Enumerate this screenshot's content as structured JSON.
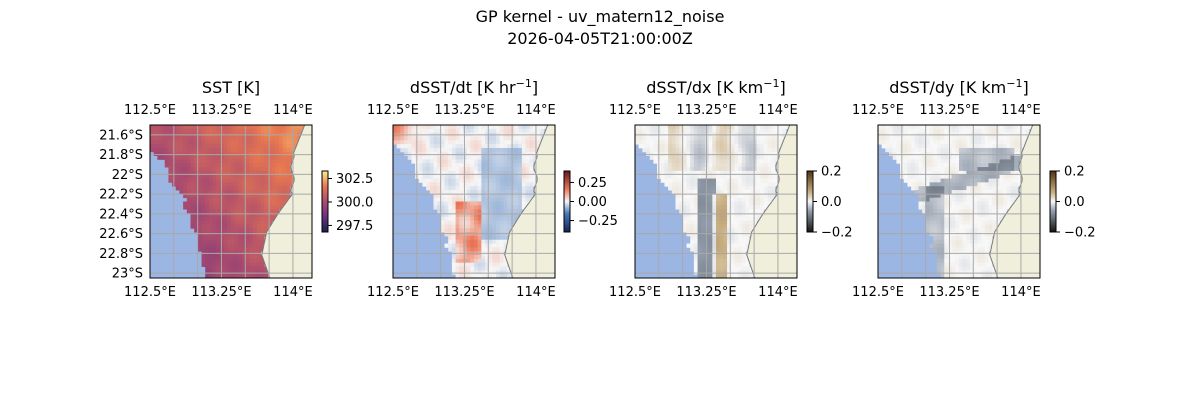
{
  "figure": {
    "title_line1": "GP kernel - uv_matern12_noise",
    "title_line2": "2026-04-05T21:00:00Z"
  },
  "chart_data": [
    {
      "type": "heatmap",
      "title_text": "SST [K]",
      "title_super": "",
      "title_suffix": "",
      "field": "sst",
      "colormap": "plasma-like (purple to orange)",
      "x_ticks": [
        "112.5°E",
        "113.25°E",
        "114°E"
      ],
      "y_ticks": [
        "21.6°S",
        "21.8°S",
        "22°S",
        "22.2°S",
        "22.4°S",
        "22.6°S",
        "22.8°S",
        "23°S"
      ],
      "xlim": [
        112.5,
        114.2
      ],
      "ylim": [
        -23.05,
        -21.5
      ],
      "land_color": "#efefdb",
      "nodata_color": "#9cb6e3",
      "colorbar": {
        "ticks": [
          "302.5",
          "300.0",
          "297.5"
        ],
        "min": 296.8,
        "max": 303.3
      }
    },
    {
      "type": "heatmap",
      "title_text": "dSST/dt [K hr",
      "title_super": "−1",
      "title_suffix": "]",
      "field": "dsdt",
      "colormap": "diverging blue-white-red",
      "x_ticks": [
        "112.5°E",
        "113.25°E",
        "114°E"
      ],
      "xlim": [
        112.5,
        114.2
      ],
      "ylim": [
        -23.05,
        -21.5
      ],
      "land_color": "#efefdb",
      "nodata_color": "#9cb6e3",
      "colorbar": {
        "ticks": [
          "0.25",
          "0.00",
          "−0.25"
        ],
        "min": -0.4,
        "max": 0.4
      }
    },
    {
      "type": "heatmap",
      "title_text": "dSST/dx [K km",
      "title_super": "−1",
      "title_suffix": "]",
      "field": "dsdx",
      "colormap": "diverging black-white-brown",
      "x_ticks": [
        "112.5°E",
        "113.25°E",
        "114°E"
      ],
      "xlim": [
        112.5,
        114.2
      ],
      "ylim": [
        -23.05,
        -21.5
      ],
      "land_color": "#efefdb",
      "nodata_color": "#9cb6e3",
      "colorbar": {
        "ticks": [
          "0.2",
          "0.0",
          "−0.2"
        ],
        "min": -0.2,
        "max": 0.2
      }
    },
    {
      "type": "heatmap",
      "title_text": "dSST/dy [K km",
      "title_super": "−1",
      "title_suffix": "]",
      "field": "dsdy",
      "colormap": "diverging black-white-brown",
      "x_ticks": [
        "112.5°E",
        "113.25°E",
        "114°E"
      ],
      "xlim": [
        112.5,
        114.2
      ],
      "ylim": [
        -23.05,
        -21.5
      ],
      "land_color": "#efefdb",
      "nodata_color": "#9cb6e3",
      "colorbar": {
        "ticks": [
          "0.2",
          "0.0",
          "−0.2"
        ],
        "min": -0.2,
        "max": 0.2
      }
    }
  ]
}
